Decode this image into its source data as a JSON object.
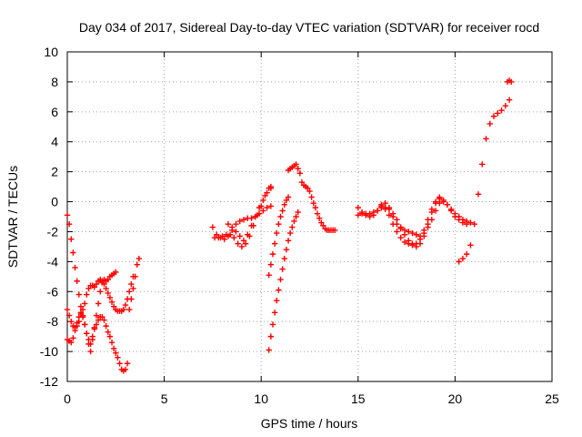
{
  "chart_data": {
    "type": "scatter",
    "title": "Day 034 of 2017, Sidereal Day-to-day VTEC variation (SDTVAR) for receiver rocd",
    "xlabel": "GPS time / hours",
    "ylabel": "SDTVAR / TECUs",
    "xlim": [
      0,
      25
    ],
    "ylim": [
      -12,
      10
    ],
    "xticks": [
      0,
      5,
      10,
      15,
      20,
      25
    ],
    "yticks": [
      -12,
      -10,
      -8,
      -6,
      -4,
      -2,
      0,
      2,
      4,
      6,
      8,
      10
    ],
    "x_tick_labels": [
      "0",
      "5",
      "10",
      "15",
      "20",
      "25"
    ],
    "y_tick_labels": [
      "-12",
      "-10",
      "-8",
      "-6",
      "-4",
      "-2",
      "0",
      "2",
      "4",
      "6",
      "8",
      "10"
    ],
    "grid": true,
    "marker": "plus",
    "color": "#ff0000",
    "series": [
      {
        "x": [
          0.0,
          0.1,
          0.2,
          0.3,
          0.4,
          0.5,
          0.6,
          0.7,
          0.8,
          0.9,
          1.0,
          1.1,
          1.2,
          1.3,
          1.4,
          1.5,
          1.6,
          1.7,
          1.8,
          1.9,
          2.0,
          2.1,
          2.2,
          2.3,
          2.4,
          2.5,
          2.6,
          2.7,
          2.8,
          2.9,
          3.0,
          3.1,
          3.2,
          3.3,
          3.4,
          3.5,
          3.6,
          3.7
        ],
        "y": [
          -0.9,
          -1.5,
          -2.5,
          -3.4,
          -4.4,
          -5.3,
          -6.2,
          -7.0,
          -7.7,
          -8.2,
          -8.8,
          -9.2,
          -9.5,
          -9.0,
          -8.5,
          -8.2,
          -7.9,
          -7.7,
          -7.7,
          -7.9,
          -8.3,
          -8.7,
          -9.0,
          -9.4,
          -9.8,
          -10.1,
          -10.4,
          -10.8,
          -11.2,
          -11.3,
          -11.2,
          -10.8,
          -7.2,
          -6.5,
          -5.8,
          -5.0,
          -4.2,
          -3.8
        ]
      },
      {
        "x": [
          0.0,
          0.1,
          0.2,
          0.3,
          0.4,
          0.5,
          0.6,
          0.7,
          0.8,
          0.9,
          1.0,
          1.1,
          1.2,
          1.3,
          1.4,
          1.5,
          1.6,
          1.7,
          1.8,
          1.9,
          2.0,
          2.1,
          2.2,
          2.3,
          2.4,
          2.5
        ],
        "y": [
          -7.2,
          -7.6,
          -8.0,
          -8.3,
          -8.4,
          -8.1,
          -7.7,
          -7.4,
          -7.6,
          -8.2,
          -8.8,
          -9.5,
          -10.0,
          -9.2,
          -8.4,
          -7.6,
          -6.8,
          -6.0,
          -5.4,
          -5.2,
          -5.3,
          -5.2,
          -5.0,
          -4.9,
          -4.8,
          -4.7
        ]
      },
      {
        "x": [
          0.0,
          0.1,
          0.2,
          0.3,
          0.4,
          0.5,
          0.6,
          0.7,
          0.8,
          0.9,
          1.0,
          1.1,
          1.2,
          1.3,
          1.4,
          1.5,
          1.6,
          1.7,
          1.8,
          1.9,
          2.0,
          2.1,
          2.2,
          2.3,
          2.4,
          2.5,
          2.6,
          2.7,
          2.8,
          2.9,
          3.0,
          3.1,
          3.2,
          3.3,
          3.4
        ],
        "y": [
          -9.2,
          -9.3,
          -9.4,
          -9.1,
          -8.6,
          -8.3,
          -8.0,
          -7.5,
          -7.2,
          -6.8,
          -6.2,
          -5.8,
          -5.6,
          -5.6,
          -5.7,
          -5.5,
          -5.3,
          -5.2,
          -5.3,
          -5.5,
          -5.8,
          -6.1,
          -6.4,
          -6.7,
          -7.0,
          -7.2,
          -7.3,
          -7.3,
          -7.3,
          -7.2,
          -6.9,
          -6.5,
          -6.0,
          -5.5,
          -5.0
        ]
      },
      {
        "x": [
          7.5,
          7.7,
          7.9,
          8.1,
          8.3,
          8.5,
          8.7,
          8.9,
          9.1,
          9.3,
          9.5,
          9.7,
          9.9,
          10.1,
          10.3,
          10.5
        ],
        "y": [
          -1.7,
          -2.2,
          -2.4,
          -2.5,
          -2.3,
          -1.9,
          -1.5,
          -1.3,
          -1.2,
          -1.1,
          -1.1,
          -1.0,
          -0.8,
          -0.6,
          -0.4,
          -0.3
        ]
      },
      {
        "x": [
          7.6,
          7.8,
          8.0,
          8.2,
          8.4,
          8.6,
          8.8,
          9.0,
          9.2,
          9.4,
          9.6,
          9.8,
          10.0,
          10.2,
          10.4,
          10.5
        ],
        "y": [
          -2.4,
          -2.4,
          -2.3,
          -2.2,
          -2.2,
          -2.4,
          -2.8,
          -3.0,
          -2.8,
          -2.3,
          -1.6,
          -0.9,
          -0.3,
          0.4,
          0.9,
          1.0
        ]
      },
      {
        "x": [
          8.3,
          8.5,
          8.7,
          8.9,
          9.1,
          9.3,
          9.5,
          9.7,
          9.9,
          10.1,
          10.3,
          10.5
        ],
        "y": [
          -1.5,
          -1.7,
          -2.0,
          -2.3,
          -2.6,
          -2.2,
          -1.6,
          -1.0,
          -0.4,
          0.1,
          0.6,
          0.9
        ]
      },
      {
        "x": [
          10.4,
          10.5,
          10.6,
          10.7,
          10.8,
          10.9,
          11.0,
          11.1,
          11.2,
          11.3,
          11.4
        ],
        "y": [
          -4.9,
          -4.2,
          -3.5,
          -2.8,
          -2.1,
          -1.5,
          -1.0,
          -0.6,
          -0.2,
          0.1,
          0.3
        ]
      },
      {
        "x": [
          10.4,
          10.5,
          10.6,
          10.7,
          10.8,
          10.9,
          11.0,
          11.1,
          11.2,
          11.3,
          11.4,
          11.5,
          11.6,
          11.7,
          11.8,
          11.9
        ],
        "y": [
          -9.9,
          -9.0,
          -8.2,
          -7.4,
          -6.6,
          -5.9,
          -5.2,
          -4.5,
          -3.8,
          -3.2,
          -2.6,
          -2.1,
          -1.7,
          -1.3,
          -1.0,
          -0.7
        ]
      },
      {
        "x": [
          11.4,
          11.5,
          11.6,
          11.7,
          11.8,
          11.9,
          12.0,
          12.1,
          12.2,
          12.3,
          12.4,
          12.5,
          12.6,
          12.7,
          12.8,
          12.9,
          13.0,
          13.1,
          13.2,
          13.3,
          13.4,
          13.5,
          13.6,
          13.7,
          13.8
        ],
        "y": [
          2.1,
          2.2,
          2.3,
          2.4,
          2.5,
          2.2,
          1.9,
          1.3,
          1.1,
          1.0,
          0.9,
          0.7,
          0.3,
          -0.1,
          -0.4,
          -0.8,
          -1.1,
          -1.4,
          -1.6,
          -1.8,
          -1.9,
          -1.9,
          -1.9,
          -1.9,
          -1.9
        ]
      },
      {
        "x": [
          15.0,
          15.2,
          15.4,
          15.6,
          15.8,
          16.0,
          16.2,
          16.4,
          16.6,
          16.8,
          17.0,
          17.2,
          17.4,
          17.6,
          17.8,
          18.0,
          18.2,
          18.4,
          18.6,
          18.8,
          19.0,
          19.2,
          19.4,
          19.6,
          19.8,
          20.0,
          20.2,
          20.4,
          20.6,
          20.8
        ],
        "y": [
          -0.4,
          -0.7,
          -0.8,
          -0.8,
          -0.7,
          -0.6,
          -0.4,
          -0.4,
          -0.5,
          -0.8,
          -1.2,
          -1.7,
          -2.2,
          -2.6,
          -2.8,
          -3.0,
          -2.8,
          -2.3,
          -1.5,
          -0.7,
          -0.1,
          0.2,
          0.1,
          -0.2,
          -0.6,
          -1.0,
          -1.2,
          -1.4,
          -1.5,
          -1.4
        ]
      },
      {
        "x": [
          15.0,
          15.2,
          15.4,
          15.6,
          15.8,
          16.0,
          16.2,
          16.4,
          16.6,
          16.8,
          17.0,
          17.2,
          17.4,
          17.6,
          17.8,
          18.0,
          18.2,
          18.4,
          18.6,
          18.8,
          19.0,
          19.2,
          19.4,
          19.6,
          19.8,
          20.0,
          20.2,
          20.4,
          20.6
        ],
        "y": [
          -0.9,
          -0.8,
          -0.9,
          -1.0,
          -0.9,
          -0.6,
          -0.3,
          -0.1,
          -0.4,
          -1.0,
          -1.5,
          -1.8,
          -1.9,
          -2.0,
          -2.1,
          -2.2,
          -2.3,
          -2.1,
          -1.7,
          -1.2,
          -0.6,
          -0.1,
          0.0,
          -0.2,
          -0.5,
          -0.8,
          -1.0,
          -1.2,
          -1.3
        ]
      },
      {
        "x": [
          16.2,
          16.4,
          16.6,
          16.8,
          17.0,
          17.2,
          17.4,
          17.6,
          17.8,
          18.0,
          18.2,
          18.4,
          18.6,
          18.8,
          19.0,
          19.2
        ],
        "y": [
          -0.2,
          -0.5,
          -0.9,
          -1.5,
          -2.0,
          -2.4,
          -2.7,
          -2.8,
          -2.9,
          -2.8,
          -2.5,
          -1.9,
          -1.2,
          -0.5,
          0.0,
          0.3
        ]
      },
      {
        "x": [
          20.2,
          20.4,
          20.6,
          20.8,
          21.0,
          21.2,
          21.4,
          21.6,
          21.8,
          22.0,
          22.2,
          22.4,
          22.6,
          22.8
        ],
        "y": [
          -4.0,
          -3.8,
          -3.5,
          -2.9,
          -1.5,
          0.5,
          2.5,
          4.2,
          5.2,
          5.7,
          5.9,
          6.1,
          6.4,
          6.8
        ]
      },
      {
        "x": [
          22.7,
          22.8,
          22.9
        ],
        "y": [
          8.0,
          8.1,
          8.0
        ]
      }
    ]
  }
}
